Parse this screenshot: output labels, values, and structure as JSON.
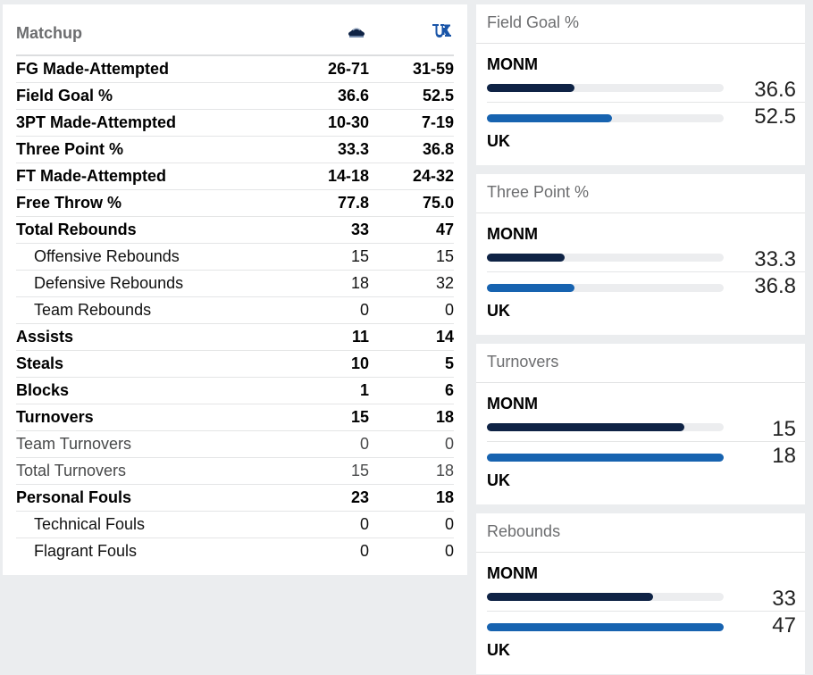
{
  "matchup": {
    "title": "Matchup",
    "team1_logo": "monmouth-hawks-logo",
    "team2_logo": "kentucky-uk-logo",
    "rows": [
      {
        "label": "FG Made-Attempted",
        "t1": "26-71",
        "t2": "31-59",
        "style": "bold"
      },
      {
        "label": "Field Goal %",
        "t1": "36.6",
        "t2": "52.5",
        "style": "bold"
      },
      {
        "label": "3PT Made-Attempted",
        "t1": "10-30",
        "t2": "7-19",
        "style": "bold"
      },
      {
        "label": "Three Point %",
        "t1": "33.3",
        "t2": "36.8",
        "style": "bold"
      },
      {
        "label": "FT Made-Attempted",
        "t1": "14-18",
        "t2": "24-32",
        "style": "bold"
      },
      {
        "label": "Free Throw %",
        "t1": "77.8",
        "t2": "75.0",
        "style": "bold"
      },
      {
        "label": "Total Rebounds",
        "t1": "33",
        "t2": "47",
        "style": "bold"
      },
      {
        "label": "Offensive Rebounds",
        "t1": "15",
        "t2": "15",
        "style": "sub"
      },
      {
        "label": "Defensive Rebounds",
        "t1": "18",
        "t2": "32",
        "style": "sub"
      },
      {
        "label": "Team Rebounds",
        "t1": "0",
        "t2": "0",
        "style": "sub"
      },
      {
        "label": "Assists",
        "t1": "11",
        "t2": "14",
        "style": "bold"
      },
      {
        "label": "Steals",
        "t1": "10",
        "t2": "5",
        "style": "bold"
      },
      {
        "label": "Blocks",
        "t1": "1",
        "t2": "6",
        "style": "bold"
      },
      {
        "label": "Turnovers",
        "t1": "15",
        "t2": "18",
        "style": "bold"
      },
      {
        "label": "Team Turnovers",
        "t1": "0",
        "t2": "0",
        "style": "light"
      },
      {
        "label": "Total Turnovers",
        "t1": "15",
        "t2": "18",
        "style": "light"
      },
      {
        "label": "Personal Fouls",
        "t1": "23",
        "t2": "18",
        "style": "bold"
      },
      {
        "label": "Technical Fouls",
        "t1": "0",
        "t2": "0",
        "style": "sub"
      },
      {
        "label": "Flagrant Fouls",
        "t1": "0",
        "t2": "0",
        "style": "sub"
      }
    ]
  },
  "cards": [
    {
      "title": "Field Goal %",
      "team1": "MONM",
      "team2": "UK",
      "v1": "36.6",
      "v2": "52.5",
      "fill1": 0.37,
      "fill2": 0.53
    },
    {
      "title": "Three Point %",
      "team1": "MONM",
      "team2": "UK",
      "v1": "33.3",
      "v2": "36.8",
      "fill1": 0.33,
      "fill2": 0.37
    },
    {
      "title": "Turnovers",
      "team1": "MONM",
      "team2": "UK",
      "v1": "15",
      "v2": "18",
      "fill1": 0.833,
      "fill2": 1.0
    },
    {
      "title": "Rebounds",
      "team1": "MONM",
      "team2": "UK",
      "v1": "33",
      "v2": "47",
      "fill1": 0.7,
      "fill2": 1.0
    }
  ],
  "colors": {
    "team1_bar": "#0f2345",
    "team2_bar": "#1763b0",
    "track": "#ecedef"
  }
}
